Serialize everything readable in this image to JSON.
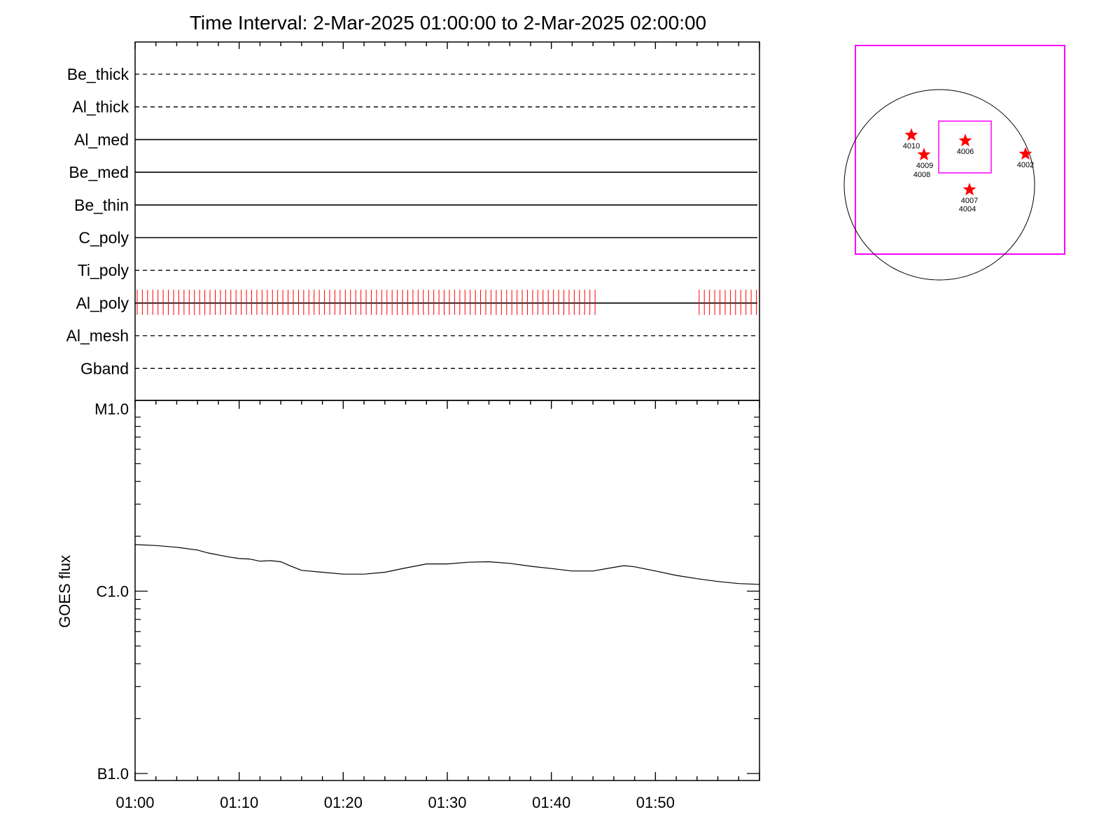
{
  "title": "Time Interval:  2-Mar-2025 01:00:00 to  2-Mar-2025 02:00:00",
  "colors": {
    "marks": "#ff0000",
    "fov": "#ff00ff",
    "line": "#000000"
  },
  "chart_data": [
    {
      "type": "timeline",
      "x_range": [
        "01:00",
        "02:00"
      ],
      "rows": [
        {
          "label": "Be_thick",
          "style": "dashed",
          "marks": []
        },
        {
          "label": "Al_thick",
          "style": "dashed",
          "marks": []
        },
        {
          "label": "Al_med",
          "style": "solid",
          "marks": []
        },
        {
          "label": "Be_med",
          "style": "solid",
          "marks": []
        },
        {
          "label": "Be_thin",
          "style": "solid",
          "marks": []
        },
        {
          "label": "C_poly",
          "style": "solid",
          "marks": []
        },
        {
          "label": "Ti_poly",
          "style": "dashed",
          "marks": []
        },
        {
          "label": "Al_poly",
          "style": "solid",
          "marks": [
            {
              "from": 0.2,
              "to": 44.5,
              "interval_min": 0.5
            },
            {
              "from": 54.2,
              "to": 59.7,
              "interval_min": 0.5
            }
          ]
        },
        {
          "label": "Al_mesh",
          "style": "dashed",
          "marks": []
        },
        {
          "label": "Gband",
          "style": "dashed",
          "marks": []
        }
      ]
    },
    {
      "type": "line",
      "ylabel": "GOES flux",
      "yscale": "log",
      "y_ticks": [
        {
          "label": "M1.0",
          "value": 1e-05
        },
        {
          "label": "C1.0",
          "value": 1e-06
        },
        {
          "label": "B1.0",
          "value": 1e-07
        }
      ],
      "x_ticks": [
        "01:00",
        "01:10",
        "01:20",
        "01:30",
        "01:40",
        "01:50"
      ],
      "xlim": [
        0,
        60
      ],
      "series": [
        {
          "x": [
            0,
            2,
            4,
            6,
            7,
            9,
            10,
            11,
            12,
            13,
            14,
            15,
            16,
            18,
            20,
            22,
            24,
            26,
            28,
            30,
            32,
            34,
            36,
            38,
            40,
            42,
            44,
            46,
            47,
            48,
            50,
            52,
            54,
            56,
            58,
            60
          ],
          "y": [
            1.8e-06,
            1.78e-06,
            1.74e-06,
            1.68e-06,
            1.62e-06,
            1.54e-06,
            1.51e-06,
            1.5e-06,
            1.46e-06,
            1.47e-06,
            1.45e-06,
            1.37e-06,
            1.3e-06,
            1.27e-06,
            1.24e-06,
            1.24e-06,
            1.27e-06,
            1.34e-06,
            1.41e-06,
            1.41e-06,
            1.44e-06,
            1.45e-06,
            1.42e-06,
            1.37e-06,
            1.33e-06,
            1.29e-06,
            1.29e-06,
            1.35e-06,
            1.38e-06,
            1.36e-06,
            1.29e-06,
            1.22e-06,
            1.17e-06,
            1.13e-06,
            1.1e-06,
            1.09e-06
          ]
        }
      ]
    },
    {
      "type": "map",
      "regions": [
        "4010",
        "4006",
        "4009",
        "4008",
        "4002",
        "4007",
        "4004"
      ]
    }
  ]
}
